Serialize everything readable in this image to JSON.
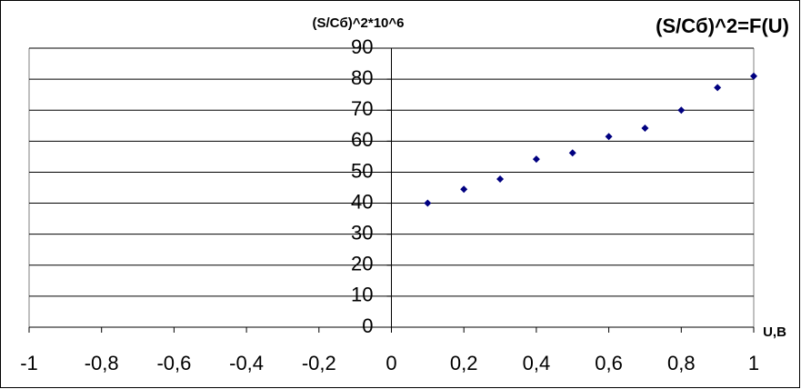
{
  "chart_data": {
    "type": "scatter",
    "title": "(S/Cб)^2=F(U)",
    "y_label": "(S/Cб)^2*10^6",
    "x_label": "U,B",
    "series": [
      {
        "color": "#000080",
        "x": [
          0.1,
          0.2,
          0.3,
          0.4,
          0.5,
          0.6,
          0.7,
          0.8,
          0.9,
          1
        ],
        "values": [
          40,
          44.5,
          47.8,
          54.2,
          56.2,
          61.5,
          64.2,
          70,
          77.3,
          81
        ]
      }
    ],
    "xlim": [
      -1,
      1
    ],
    "xticks": [
      -1,
      {
        "value": -0.8,
        "label": "-0,8"
      },
      {
        "value": -0.6,
        "label": "-0,6"
      },
      {
        "value": -0.4,
        "label": "-0,4"
      },
      {
        "value": -0.2,
        "label": "-0,2"
      },
      0,
      {
        "value": 0.2,
        "label": "0,2"
      },
      {
        "value": 0.4,
        "label": "0,4"
      },
      {
        "value": 0.6,
        "label": "0,6"
      },
      {
        "value": 0.8,
        "label": "0,8"
      },
      1
    ],
    "ylim": [
      0,
      90
    ],
    "yticks": [
      0,
      10,
      20,
      30,
      40,
      50,
      60,
      70,
      80,
      90
    ],
    "grid": true
  }
}
